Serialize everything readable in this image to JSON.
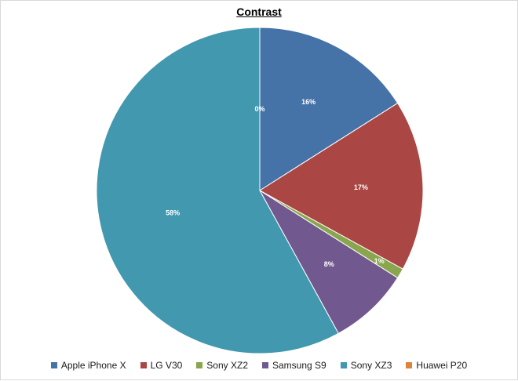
{
  "chart_data": {
    "type": "pie",
    "title": "Contrast",
    "legend_position": "bottom",
    "categories": [
      "Apple iPhone X",
      "LG V30",
      "Sony XZ2",
      "Samsung S9",
      "Sony XZ3",
      "Huawei P20"
    ],
    "values": [
      16,
      17,
      1,
      8,
      58,
      0
    ],
    "data_labels": [
      "16%",
      "17%",
      "1%",
      "8%",
      "58%",
      "0%"
    ],
    "colors": [
      "#4572A7",
      "#AA4643",
      "#89A54E",
      "#71588F",
      "#4198AF",
      "#DB843D"
    ]
  }
}
